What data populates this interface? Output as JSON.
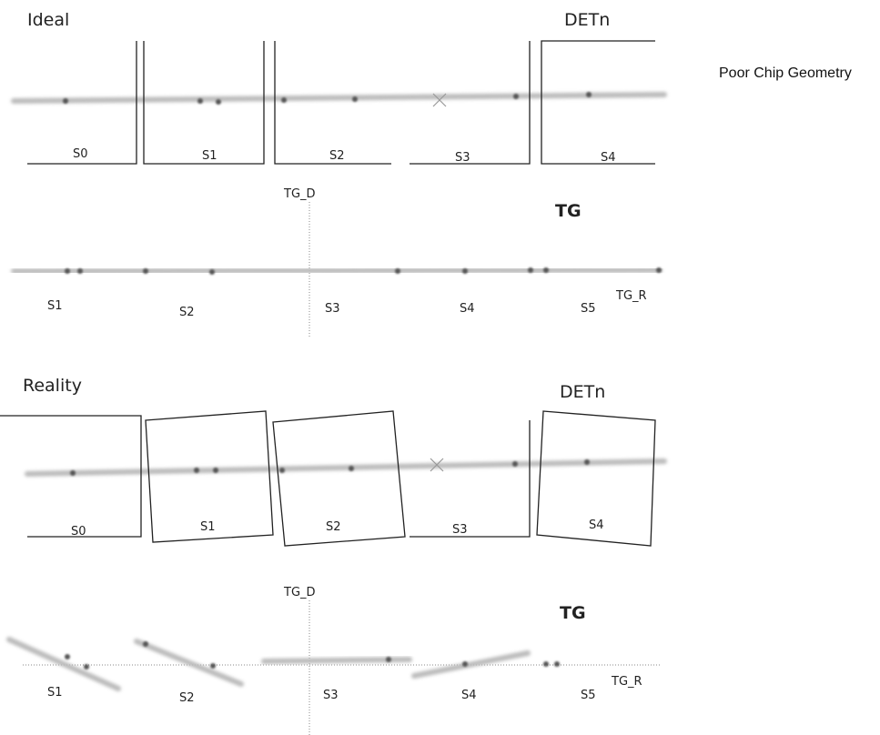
{
  "side_note": "Poor Chip Geometry",
  "ideal": {
    "title": "Ideal",
    "det_label": "DETn",
    "chips": [
      "S0",
      "S1",
      "S2",
      "S3",
      "S4"
    ],
    "tg": {
      "label": "TG",
      "tg_d": "TG_D",
      "tg_r": "TG_R",
      "segments": [
        "S1",
        "S2",
        "S3",
        "S4",
        "S5"
      ]
    }
  },
  "reality": {
    "title": "Reality",
    "det_label": "DETn",
    "chips": [
      "S0",
      "S1",
      "S2",
      "S3",
      "S4"
    ],
    "tg": {
      "label": "TG",
      "tg_d": "TG_D",
      "tg_r": "TG_R",
      "segments": [
        "S1",
        "S2",
        "S3",
        "S4",
        "S5"
      ]
    }
  }
}
